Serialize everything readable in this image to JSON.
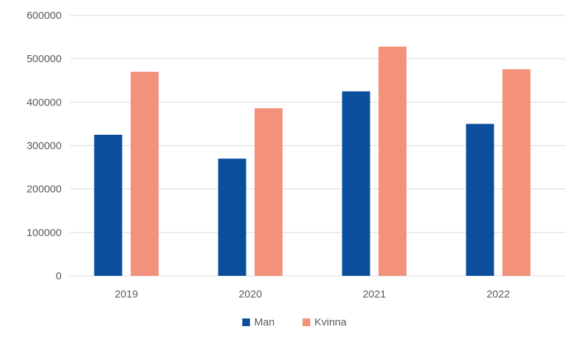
{
  "chart_data": {
    "type": "bar",
    "categories": [
      "2019",
      "2020",
      "2021",
      "2022"
    ],
    "series": [
      {
        "name": "Man",
        "color": "#0b4f9c",
        "values": [
          325000,
          270000,
          425000,
          350000
        ]
      },
      {
        "name": "Kvinna",
        "color": "#f4917a",
        "values": [
          470000,
          386000,
          528000,
          476000
        ]
      }
    ],
    "ylim": [
      0,
      600000
    ],
    "yticks": [
      0,
      100000,
      200000,
      300000,
      400000,
      500000,
      600000
    ],
    "ytick_labels": [
      "0",
      "100000",
      "200000",
      "300000",
      "400000",
      "500000",
      "600000"
    ],
    "grid": true,
    "legend_position": "bottom",
    "title": "",
    "xlabel": "",
    "ylabel": ""
  }
}
